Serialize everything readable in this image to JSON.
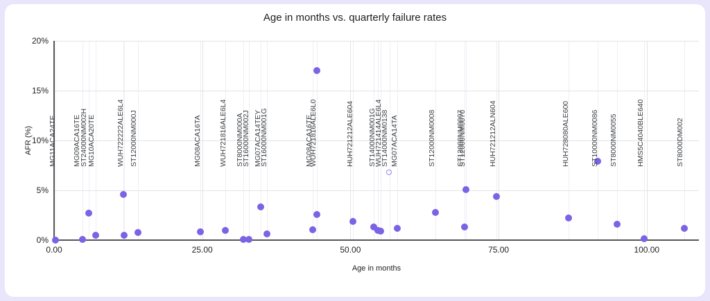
{
  "page": {
    "background": "#e9e6fb",
    "card_background": "#ffffff"
  },
  "chart_data": {
    "type": "scatter",
    "title": "Age in months vs. quarterly failure rates",
    "xlabel": "Age in months",
    "ylabel": "AFR (%)",
    "legend": "none",
    "grid": true,
    "point_color": "#7C62E4",
    "grid_color": "#e3e3e3",
    "annotation_grid_color": "#efeef6",
    "axis_color": "#555658",
    "xlim": [
      0,
      108.8
    ],
    "ylim": [
      0,
      20
    ],
    "x_ticks": [
      {
        "label": "0.00",
        "value": 0
      },
      {
        "label": "25.00",
        "value": 25
      },
      {
        "label": "50.00",
        "value": 50
      },
      {
        "label": "75.00",
        "value": 75
      },
      {
        "label": "100.00",
        "value": 100
      }
    ],
    "y_ticks": [
      {
        "label": "0%",
        "value": 0
      },
      {
        "label": "5%",
        "value": 5
      },
      {
        "label": "10%",
        "value": 10
      },
      {
        "label": "15%",
        "value": 15
      },
      {
        "label": "20%",
        "value": 20
      }
    ],
    "points": [
      {
        "x": 0.2,
        "y": 0.0
      },
      {
        "x": 4.8,
        "y": 0.05
      },
      {
        "x": 5.8,
        "y": 2.7
      },
      {
        "x": 7.0,
        "y": 0.5
      },
      {
        "x": 11.7,
        "y": 4.55
      },
      {
        "x": 11.8,
        "y": 0.5
      },
      {
        "x": 14.1,
        "y": 0.75
      },
      {
        "x": 24.7,
        "y": 0.8
      },
      {
        "x": 28.9,
        "y": 0.95
      },
      {
        "x": 31.9,
        "y": 0.05
      },
      {
        "x": 32.9,
        "y": 0.05
      },
      {
        "x": 34.9,
        "y": 3.35
      },
      {
        "x": 35.9,
        "y": 0.65
      },
      {
        "x": 43.6,
        "y": 1.05
      },
      {
        "x": 44.3,
        "y": 2.6
      },
      {
        "x": 44.3,
        "y": 17.0
      },
      {
        "x": 50.4,
        "y": 1.9
      },
      {
        "x": 53.9,
        "y": 1.35
      },
      {
        "x": 54.6,
        "y": 1.0
      },
      {
        "x": 55.1,
        "y": 0.9
      },
      {
        "x": 56.6,
        "y": 6.75,
        "style": "ring"
      },
      {
        "x": 57.9,
        "y": 1.2
      },
      {
        "x": 64.4,
        "y": 2.75
      },
      {
        "x": 69.2,
        "y": 1.3
      },
      {
        "x": 69.5,
        "y": 5.1
      },
      {
        "x": 74.6,
        "y": 4.35
      },
      {
        "x": 86.8,
        "y": 2.2
      },
      {
        "x": 91.7,
        "y": 7.9
      },
      {
        "x": 95.0,
        "y": 1.6
      },
      {
        "x": 99.6,
        "y": 0.15
      },
      {
        "x": 106.3,
        "y": 1.15
      }
    ],
    "model_labels": [
      {
        "text": "MG11ACA24TE",
        "x": 1.2
      },
      {
        "text": "MG09ACA16TE",
        "x": 5.3
      },
      {
        "text": "ST24000NM002H",
        "x": 6.4
      },
      {
        "text": "MG10ACA20TE",
        "x": 7.7
      },
      {
        "text": "WUH722222ALE6L4",
        "x": 12.6
      },
      {
        "text": "ST12000NM000J",
        "x": 14.9
      },
      {
        "text": "MG08ACA16TA",
        "x": 25.6
      },
      {
        "text": "WUH721816ALE6L4",
        "x": 29.9
      },
      {
        "text": "ST8000NM000A",
        "x": 32.7
      },
      {
        "text": "ST16000NM002J",
        "x": 33.8
      },
      {
        "text": "MG07ACA14TEY",
        "x": 35.8
      },
      {
        "text": "ST16000NM001G",
        "x": 36.9
      },
      {
        "text": "MG08ACA16TE",
        "x": 44.4
      },
      {
        "text": "WUH721816ALE6L0",
        "x": 45.2
      },
      {
        "text": "HUH721212ALE604",
        "x": 51.3
      },
      {
        "text": "ST14000NM001G",
        "x": 55.1
      },
      {
        "text": "WUH721414ALE6L4",
        "x": 56.1
      },
      {
        "text": "ST14000NM0138",
        "x": 57.2
      },
      {
        "text": "MG07ACA14TA",
        "x": 58.8
      },
      {
        "text": "ST12000NM0008",
        "x": 65.2
      },
      {
        "text": "ST12000NM0007",
        "x": 70.0
      },
      {
        "text": "ST12000NM0070",
        "x": 70.3
      },
      {
        "text": "HUH721212ALN604",
        "x": 75.5
      },
      {
        "text": "HUH728080ALE600",
        "x": 87.7
      },
      {
        "text": "ST10000NM0086",
        "x": 92.6
      },
      {
        "text": "ST8000NM0055",
        "x": 95.8
      },
      {
        "text": "HMS5C4040BLE640",
        "x": 100.4
      },
      {
        "text": "ST8000DM002",
        "x": 107.0
      }
    ]
  }
}
